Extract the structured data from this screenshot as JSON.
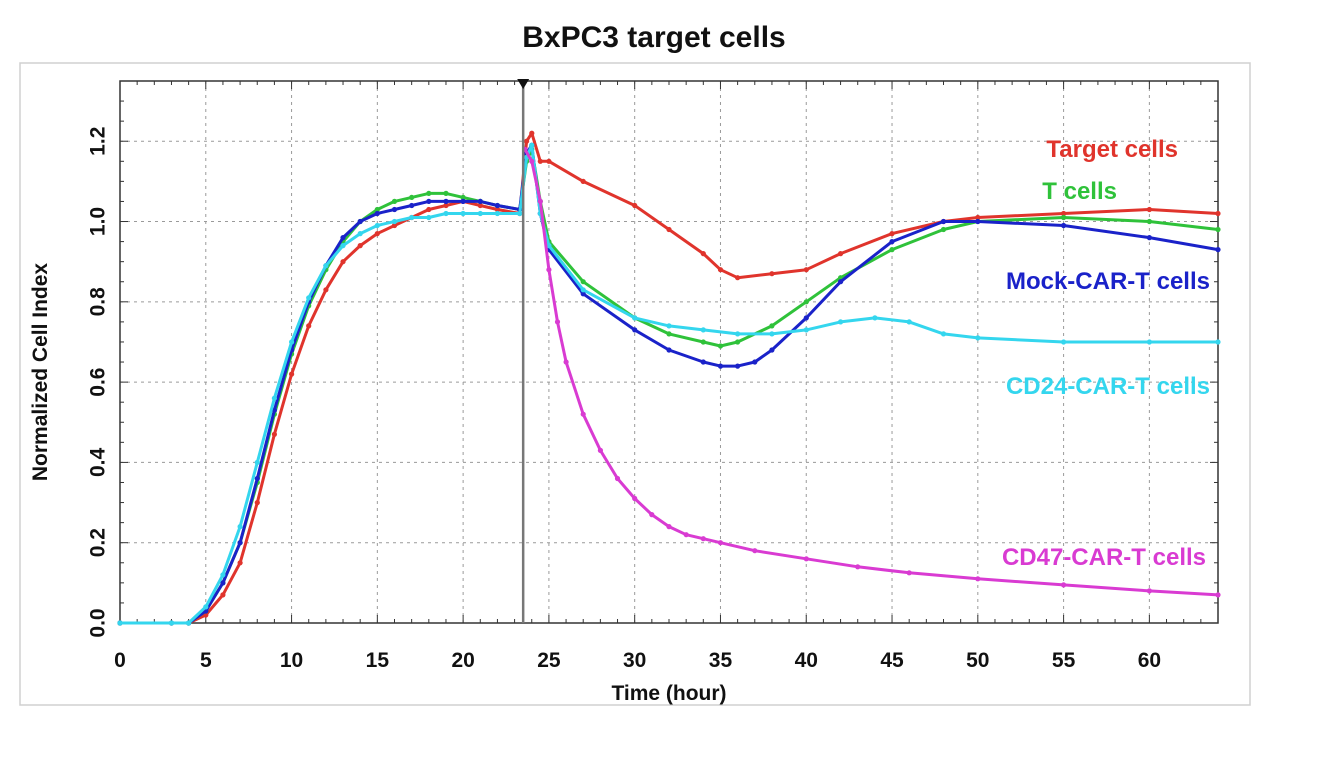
{
  "chart_data": {
    "type": "line",
    "title": "BxPC3 target cells",
    "xlabel": "Time (hour)",
    "ylabel": "Normalized Cell Index",
    "xlim": [
      0,
      64
    ],
    "ylim": [
      0,
      1.35
    ],
    "xticks": [
      "0",
      "5",
      "10",
      "15",
      "20",
      "25",
      "30",
      "35",
      "40",
      "45",
      "50",
      "55",
      "60"
    ],
    "yticks": [
      "0.0",
      "0.2",
      "0.4",
      "0.6",
      "0.8",
      "1.0",
      "1.2"
    ],
    "grid": true,
    "legend_placement": "right (inline labels)",
    "marker_time": 23.5,
    "series": [
      {
        "name": "Target cells",
        "color": "#e0342c",
        "x": [
          0,
          3,
          4,
          5,
          6,
          7,
          8,
          9,
          10,
          11,
          12,
          13,
          14,
          15,
          16,
          17,
          18,
          19,
          20,
          21,
          22,
          23.3,
          23.7,
          24,
          24.5,
          25,
          27,
          30,
          32,
          34,
          35,
          36,
          38,
          40,
          42,
          45,
          48,
          50,
          55,
          60,
          64
        ],
        "y": [
          0,
          0,
          0,
          0.02,
          0.07,
          0.15,
          0.3,
          0.47,
          0.62,
          0.74,
          0.83,
          0.9,
          0.94,
          0.97,
          0.99,
          1.01,
          1.03,
          1.04,
          1.05,
          1.04,
          1.03,
          1.02,
          1.2,
          1.22,
          1.15,
          1.15,
          1.1,
          1.04,
          0.98,
          0.92,
          0.88,
          0.86,
          0.87,
          0.88,
          0.92,
          0.97,
          1.0,
          1.01,
          1.02,
          1.03,
          1.02
        ]
      },
      {
        "name": "T cells",
        "color": "#2fc23a",
        "x": [
          0,
          3,
          4,
          5,
          6,
          7,
          8,
          9,
          10,
          11,
          12,
          13,
          14,
          15,
          16,
          17,
          18,
          19,
          20,
          21,
          22,
          23.3,
          23.7,
          24,
          24.5,
          25,
          27,
          30,
          32,
          34,
          35,
          36,
          38,
          40,
          42,
          45,
          48,
          50,
          55,
          60,
          64
        ],
        "y": [
          0,
          0,
          0,
          0.03,
          0.1,
          0.2,
          0.35,
          0.52,
          0.67,
          0.79,
          0.88,
          0.95,
          1.0,
          1.03,
          1.05,
          1.06,
          1.07,
          1.07,
          1.06,
          1.05,
          1.04,
          1.03,
          1.15,
          1.18,
          1.05,
          0.95,
          0.85,
          0.76,
          0.72,
          0.7,
          0.69,
          0.7,
          0.74,
          0.8,
          0.86,
          0.93,
          0.98,
          1.0,
          1.01,
          1.0,
          0.98
        ]
      },
      {
        "name": "Mock-CAR-T cells",
        "color": "#1a22c9",
        "x": [
          0,
          3,
          4,
          5,
          6,
          7,
          8,
          9,
          10,
          11,
          12,
          13,
          14,
          15,
          16,
          17,
          18,
          19,
          20,
          21,
          22,
          23.3,
          23.7,
          24,
          24.5,
          25,
          27,
          30,
          32,
          34,
          35,
          36,
          37,
          38,
          40,
          42,
          45,
          48,
          50,
          55,
          60,
          64
        ],
        "y": [
          0,
          0,
          0,
          0.03,
          0.1,
          0.2,
          0.36,
          0.53,
          0.68,
          0.8,
          0.89,
          0.96,
          1.0,
          1.02,
          1.03,
          1.04,
          1.05,
          1.05,
          1.05,
          1.05,
          1.04,
          1.03,
          1.17,
          1.19,
          1.02,
          0.93,
          0.82,
          0.73,
          0.68,
          0.65,
          0.64,
          0.64,
          0.65,
          0.68,
          0.76,
          0.85,
          0.95,
          1.0,
          1.0,
          0.99,
          0.96,
          0.93
        ]
      },
      {
        "name": "CD24-CAR-T cells",
        "color": "#34d6ee",
        "x": [
          0,
          3,
          4,
          5,
          6,
          7,
          8,
          9,
          10,
          11,
          12,
          13,
          14,
          15,
          16,
          17,
          18,
          19,
          20,
          21,
          22,
          23.3,
          23.7,
          24,
          24.5,
          25,
          27,
          30,
          32,
          34,
          36,
          38,
          40,
          42,
          44,
          46,
          48,
          50,
          55,
          60,
          64
        ],
        "y": [
          0,
          0,
          0,
          0.04,
          0.12,
          0.24,
          0.4,
          0.56,
          0.7,
          0.81,
          0.89,
          0.94,
          0.97,
          0.99,
          1.0,
          1.01,
          1.01,
          1.02,
          1.02,
          1.02,
          1.02,
          1.02,
          1.16,
          1.19,
          1.02,
          0.94,
          0.83,
          0.76,
          0.74,
          0.73,
          0.72,
          0.72,
          0.73,
          0.75,
          0.76,
          0.75,
          0.72,
          0.71,
          0.7,
          0.7,
          0.7
        ]
      },
      {
        "name": "CD47-CAR-T cells",
        "color": "#d93bd2",
        "x": [
          23.6,
          24,
          24.5,
          25,
          25.5,
          26,
          27,
          28,
          29,
          30,
          31,
          32,
          33,
          34,
          35,
          37,
          40,
          43,
          46,
          50,
          55,
          60,
          64
        ],
        "y": [
          1.18,
          1.15,
          1.05,
          0.88,
          0.75,
          0.65,
          0.52,
          0.43,
          0.36,
          0.31,
          0.27,
          0.24,
          0.22,
          0.21,
          0.2,
          0.18,
          0.16,
          0.14,
          0.125,
          0.11,
          0.095,
          0.08,
          0.07
        ]
      }
    ]
  }
}
